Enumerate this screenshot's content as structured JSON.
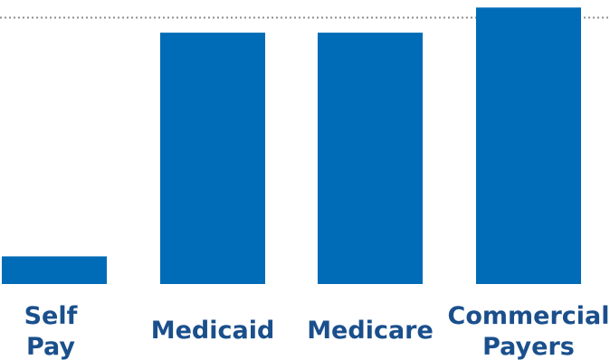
{
  "chart_data": {
    "type": "bar",
    "categories": [
      [
        "Self",
        "Pay"
      ],
      [
        "Medicaid"
      ],
      [
        "Medicare"
      ],
      [
        "Commercial",
        "Payers"
      ]
    ],
    "values": [
      11,
      100,
      100,
      110
    ],
    "reference_value": 106,
    "ylim": [
      0,
      113
    ],
    "title": "",
    "xlabel": "",
    "ylabel": "",
    "grid": false,
    "bar_color": "#006bb6",
    "label_color": "#1a4f8c",
    "reference_line_color": "#8c8c8c"
  }
}
